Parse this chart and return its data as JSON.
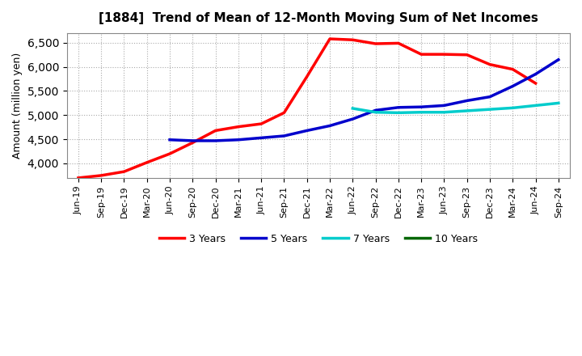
{
  "title": "[1884]  Trend of Mean of 12-Month Moving Sum of Net Incomes",
  "ylabel": "Amount (million yen)",
  "background_color": "#ffffff",
  "grid_color": "#aaaaaa",
  "x_labels": [
    "Jun-19",
    "Sep-19",
    "Dec-19",
    "Mar-20",
    "Jun-20",
    "Sep-20",
    "Dec-20",
    "Mar-21",
    "Jun-21",
    "Sep-21",
    "Dec-21",
    "Mar-22",
    "Jun-22",
    "Sep-22",
    "Dec-22",
    "Mar-23",
    "Jun-23",
    "Sep-23",
    "Dec-23",
    "Mar-24",
    "Jun-24",
    "Sep-24"
  ],
  "ylim": [
    3700,
    6700
  ],
  "yticks": [
    4000,
    4500,
    5000,
    5500,
    6000,
    6500
  ],
  "y_3y": [
    3700,
    3750,
    3830,
    4020,
    4200,
    4430,
    4680,
    4760,
    4820,
    5050,
    5800,
    6580,
    6560,
    6480,
    6490,
    6260,
    6260,
    6250,
    6050,
    5950,
    5660,
    null
  ],
  "y_5y": [
    null,
    null,
    null,
    null,
    4490,
    4470,
    4470,
    4490,
    4530,
    4570,
    4680,
    4780,
    4920,
    5100,
    5160,
    5170,
    5200,
    5300,
    5380,
    5600,
    5850,
    6150
  ],
  "y_7y": [
    null,
    null,
    null,
    null,
    null,
    null,
    null,
    null,
    null,
    null,
    null,
    null,
    5140,
    5060,
    5050,
    5060,
    5060,
    5090,
    5120,
    5150,
    5200,
    5250
  ],
  "y_10y": [
    null,
    null,
    null,
    null,
    null,
    null,
    null,
    null,
    null,
    null,
    null,
    null,
    null,
    null,
    null,
    null,
    null,
    null,
    null,
    null,
    null,
    null
  ],
  "color_3y": "#ff0000",
  "color_5y": "#0000cc",
  "color_7y": "#00cccc",
  "color_10y": "#006600",
  "linewidth": 2.5,
  "title_fontsize": 11,
  "ylabel_fontsize": 9,
  "tick_fontsize": 8,
  "legend_fontsize": 9
}
